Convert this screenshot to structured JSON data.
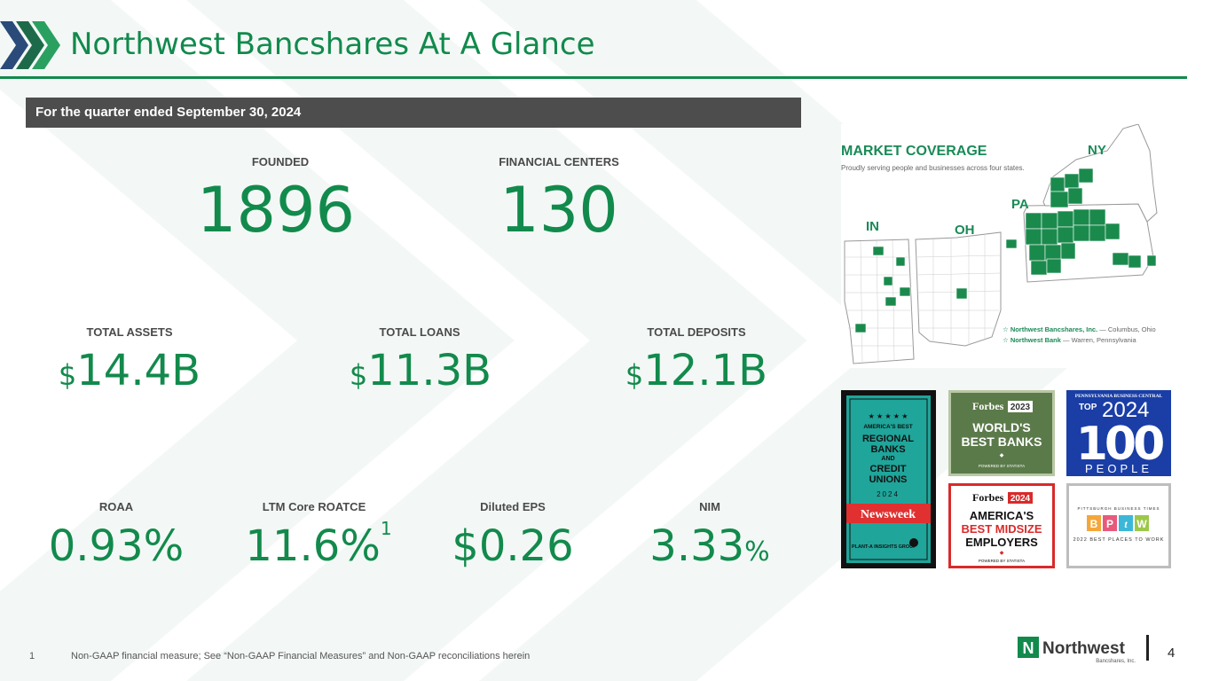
{
  "header": {
    "title": "Northwest Bancshares At A Glance"
  },
  "banner": "For the quarter ended September 30, 2024",
  "stats_top": [
    {
      "label": "FOUNDED",
      "value": "1896"
    },
    {
      "label": "FINANCIAL CENTERS",
      "value": "130"
    }
  ],
  "stats_mid": [
    {
      "label": "TOTAL ASSETS",
      "prefix": "$",
      "value": "14.4B"
    },
    {
      "label": "TOTAL LOANS",
      "prefix": "$",
      "value": "11.3B"
    },
    {
      "label": "TOTAL DEPOSITS",
      "prefix": "$",
      "value": "12.1B"
    }
  ],
  "stats_bottom": [
    {
      "label": "ROAA",
      "value": "0.93%"
    },
    {
      "label": "LTM Core ROATCE",
      "value": "11.6%",
      "superscript": "1"
    },
    {
      "label": "Diluted EPS",
      "value": "$0.26"
    },
    {
      "label": "NIM",
      "value": "3.33",
      "suffix": "%"
    }
  ],
  "map": {
    "title": "MARKET COVERAGE",
    "subtitle": "Proudly serving people and businesses across four states.",
    "states": [
      "IN",
      "OH",
      "PA",
      "NY"
    ],
    "legend": [
      {
        "name": "Northwest Bancshares, Inc.",
        "place": " — Columbus, Ohio"
      },
      {
        "name": "Northwest Bank",
        "place": " — Warren, Pennsylvania"
      }
    ]
  },
  "badges": {
    "newsweek": {
      "top": "AMERICA'S BEST",
      "l1": "REGIONAL",
      "l2": "BANKS",
      "l3": "AND",
      "l4": "CREDIT",
      "l5": "UNIONS",
      "year": "2024",
      "brand": "Newsweek",
      "partner": "PLANT-A INSIGHTS GROUP"
    },
    "forbes2023": {
      "brand": "Forbes",
      "year": "2023",
      "l1": "WORLD'S",
      "l2": "BEST BANKS",
      "foot": "POWERED BY STATISTA"
    },
    "top100": {
      "top": "PENNSYLVANIA BUSINESS CENTRAL",
      "a": "TOP",
      "year": "2024",
      "num": "100",
      "people": "PEOPLE"
    },
    "forbes2024": {
      "brand": "Forbes",
      "year": "2024",
      "l1": "AMERICA'S",
      "l2": "BEST MIDSIZE",
      "l3": "EMPLOYERS",
      "foot": "POWERED BY STATISTA"
    },
    "bptw": {
      "top": "PITTSBURGH BUSINESS TIMES",
      "letters": [
        "B",
        "P",
        "t",
        "W"
      ],
      "foot": "2022 BEST PLACES TO WORK"
    }
  },
  "colors": {
    "brand_green": "#118a4c",
    "banner_gray": "#4d4d4d"
  },
  "footer": {
    "fn_num": "1",
    "fn_text": "Non-GAAP financial measure; See “Non-GAAP Financial Measures” and Non-GAAP reconciliations herein",
    "logo_text": "Northwest",
    "logo_sub": "Bancshares, Inc.",
    "page": "4"
  }
}
